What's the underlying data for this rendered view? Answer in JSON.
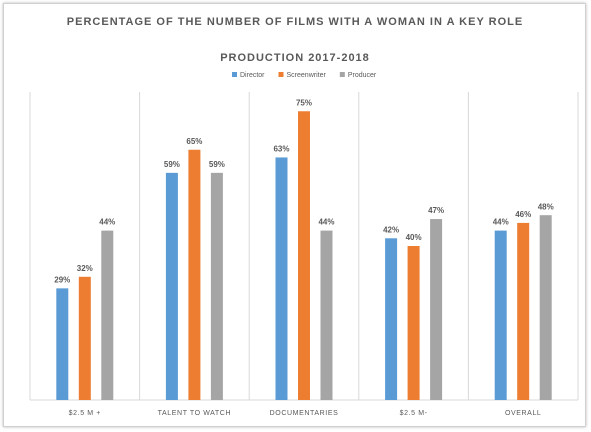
{
  "chart_data": {
    "type": "bar",
    "title": "PERCENTAGE OF THE NUMBER OF FILMS WITH A WOMAN IN A KEY ROLE",
    "subtitle": "PRODUCTION 2017-2018",
    "categories": [
      "$2.5 M +",
      "TALENT TO WATCH",
      "DOCUMENTARIES",
      "$2.5 M-",
      "OVERALL"
    ],
    "series": [
      {
        "name": "Director",
        "color": "#5b9bd5",
        "values": [
          29,
          59,
          63,
          42,
          44
        ],
        "value_labels": [
          "29%",
          "59%",
          "63%",
          "42%",
          "44%"
        ]
      },
      {
        "name": "Screenwriter",
        "color": "#ed7d31",
        "values": [
          32,
          65,
          75,
          40,
          46
        ],
        "value_labels": [
          "32%",
          "65%",
          "75%",
          "40%",
          "46%"
        ]
      },
      {
        "name": "Producer",
        "color": "#a5a5a5",
        "values": [
          44,
          59,
          44,
          47,
          48
        ],
        "value_labels": [
          "44%",
          "59%",
          "44%",
          "47%",
          "48%"
        ]
      }
    ],
    "ylim": [
      0,
      80
    ],
    "legend": "top"
  }
}
